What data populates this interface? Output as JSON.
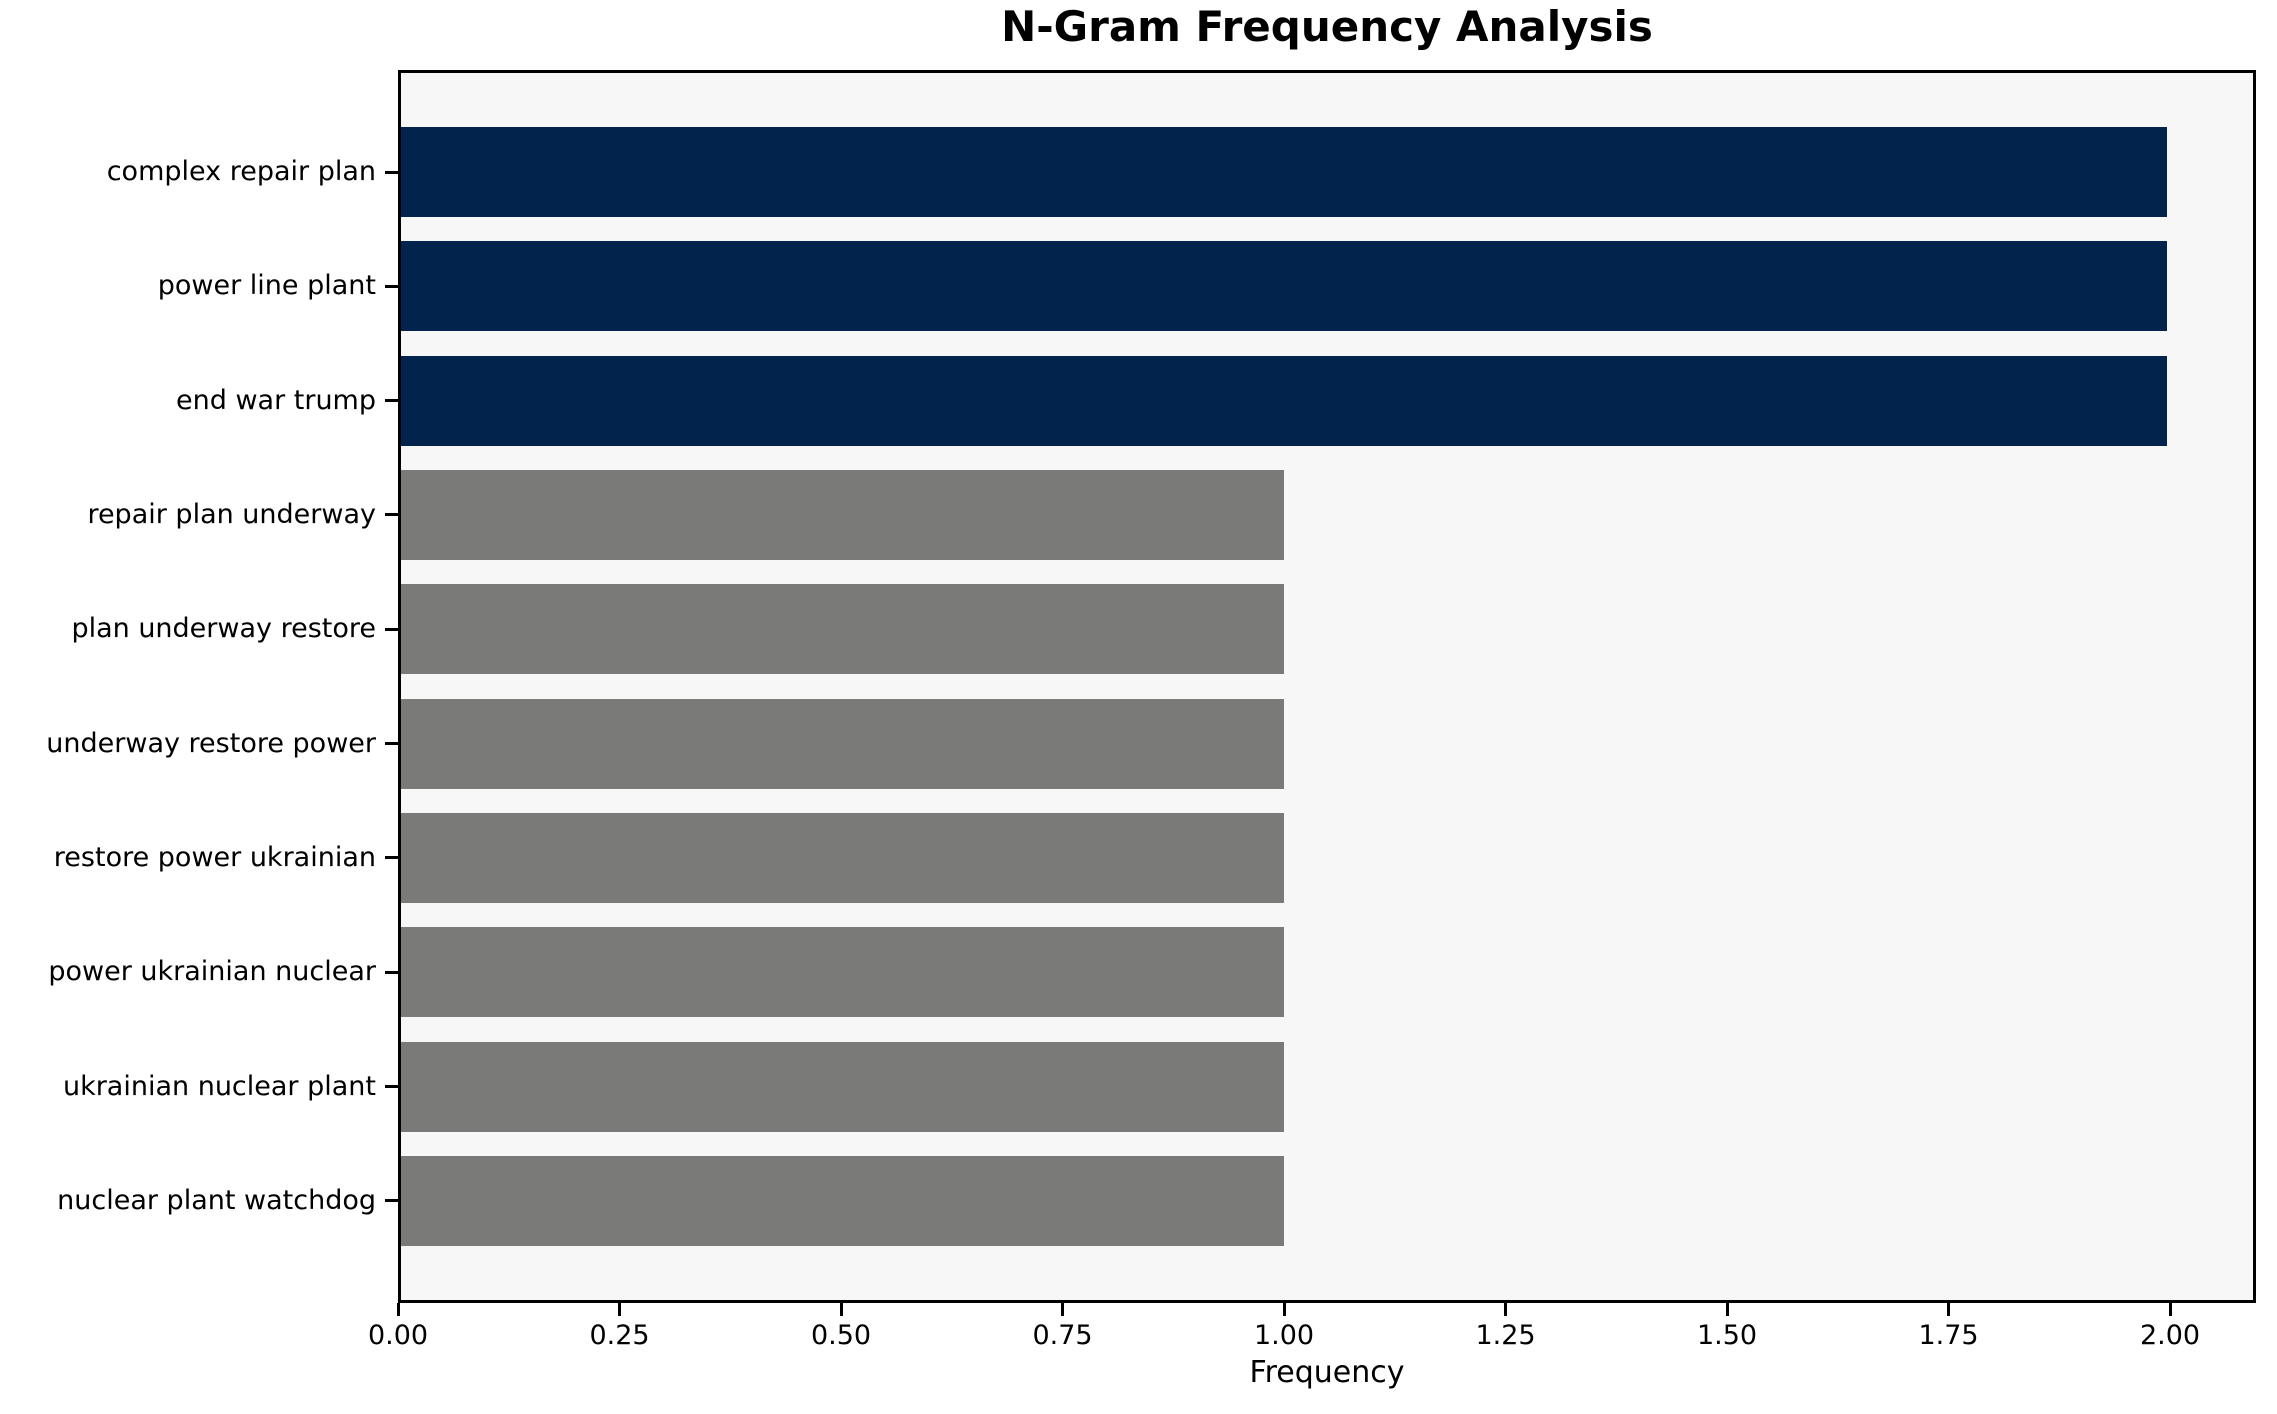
{
  "page": {
    "background_color": "#ffffff",
    "plot_background_color": "#f7f7f7",
    "axis_color": "#000000"
  },
  "chart_data": {
    "type": "bar",
    "orientation": "horizontal",
    "title": "N-Gram Frequency Analysis",
    "xlabel": "Frequency",
    "ylabel": "",
    "categories": [
      "complex repair plan",
      "power line plant",
      "end war trump",
      "repair plan underway",
      "plan underway restore",
      "underway restore power",
      "restore power ukrainian",
      "power ukrainian nuclear",
      "ukrainian nuclear plant",
      "nuclear plant watchdog"
    ],
    "values": [
      2,
      2,
      2,
      1,
      1,
      1,
      1,
      1,
      1,
      1
    ],
    "bar_colors": [
      "#02234c",
      "#02234c",
      "#02234c",
      "#7a7a78",
      "#7a7a78",
      "#7a7a78",
      "#7a7a78",
      "#7a7a78",
      "#7a7a78",
      "#7a7a78"
    ],
    "highlight_color": "#02234c",
    "default_color": "#7a7a78",
    "xlim": [
      0,
      2.097
    ],
    "x_tick_values": [
      0.0,
      0.25,
      0.5,
      0.75,
      1.0,
      1.25,
      1.5,
      1.75,
      2.0
    ],
    "x_tick_labels": [
      "0.00",
      "0.25",
      "0.50",
      "0.75",
      "1.00",
      "1.25",
      "1.50",
      "1.75",
      "2.00"
    ],
    "grid": false,
    "legend": null
  }
}
